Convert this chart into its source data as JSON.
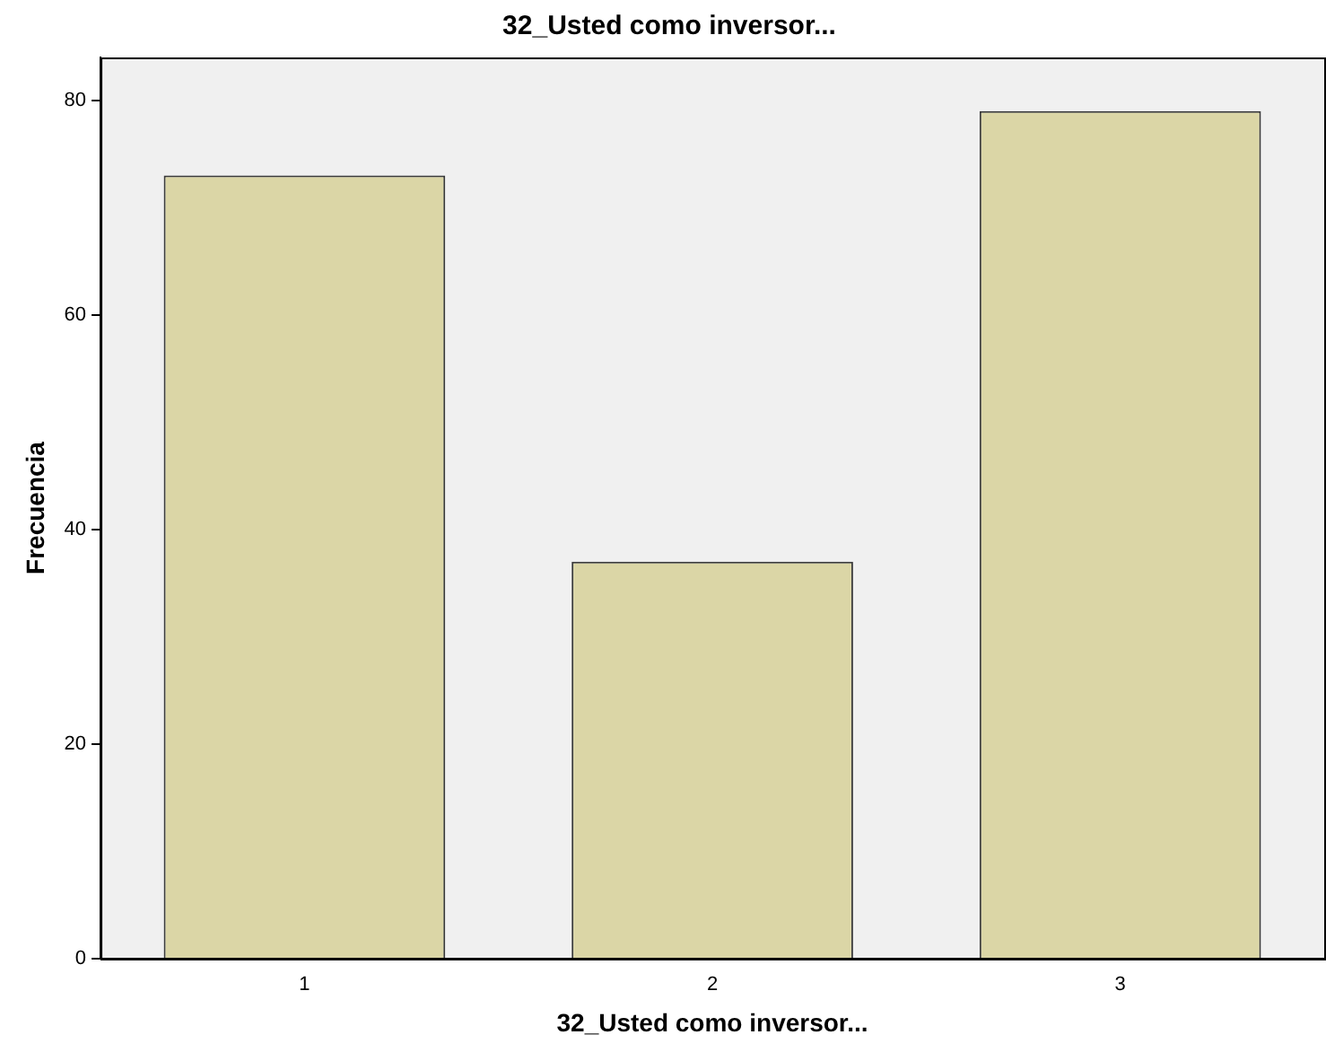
{
  "chart_data": {
    "type": "bar",
    "title": "32_Usted como inversor...",
    "xlabel": "32_Usted como inversor...",
    "ylabel": "Frecuencia",
    "categories": [
      "1",
      "2",
      "3"
    ],
    "values": [
      73,
      37,
      79
    ],
    "color": "#dbd6a6",
    "ylim": [
      0,
      84
    ],
    "yticks": [
      0,
      20,
      40,
      60,
      80
    ],
    "grid": false,
    "legend": false
  }
}
